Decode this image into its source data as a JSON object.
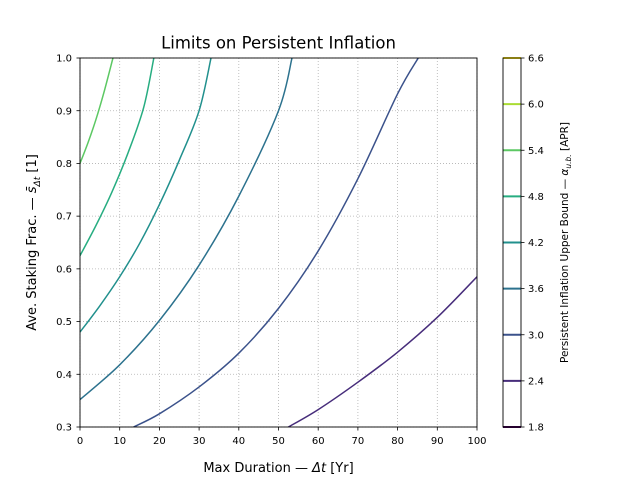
{
  "chart_data": {
    "type": "line",
    "title": "Limits on Persistent Inflation",
    "xlabel_text": "Max Duration — ",
    "xlabel_sym": "Δt",
    "xlabel_unit": " [Yr]",
    "ylabel_text": "Ave. Staking Frac. — ",
    "ylabel_sym": "s̄",
    "ylabel_sub": "Δt",
    "ylabel_unit": " [1]",
    "colorbar_label_text": "Persistent Inflation Upper Bound — ",
    "colorbar_label_sym": "α",
    "colorbar_label_sub": "u.b.",
    "colorbar_label_unit": "  [APR]",
    "xlim": [
      0,
      100
    ],
    "ylim": [
      0.3,
      1.0
    ],
    "x_ticks": [
      0,
      10,
      20,
      30,
      40,
      50,
      60,
      70,
      80,
      90,
      100
    ],
    "y_ticks": [
      0.3,
      0.4,
      0.5,
      0.6,
      0.7,
      0.8,
      0.9,
      1.0
    ],
    "y_tick_labels": [
      "0.3",
      "0.4",
      "0.5",
      "0.6",
      "0.7",
      "0.8",
      "0.9",
      "1.0"
    ],
    "grid": true,
    "colorbar": {
      "levels": [
        1.8,
        2.4,
        3.0,
        3.6,
        4.2,
        4.8,
        5.4,
        6.0,
        6.6
      ],
      "labels": [
        "1.8",
        "2.4",
        "3.0",
        "3.6",
        "4.2",
        "4.8",
        "5.4",
        "6.0",
        "6.6"
      ],
      "colors": [
        "#440154",
        "#472d7b",
        "#3b528b",
        "#2c728e",
        "#21908d",
        "#27ad81",
        "#5cc863",
        "#aadc32",
        "#fde725"
      ]
    },
    "series": [
      {
        "level": 2.4,
        "color": "#472d7b",
        "x": [
          52.5,
          60,
          70,
          80,
          90,
          100
        ],
        "y": [
          0.3,
          0.333,
          0.385,
          0.442,
          0.508,
          0.585
        ]
      },
      {
        "level": 3.0,
        "color": "#3b528b",
        "x": [
          13.5,
          20,
          30,
          40,
          50,
          60,
          70,
          80,
          85.2
        ],
        "y": [
          0.3,
          0.325,
          0.376,
          0.44,
          0.525,
          0.634,
          0.771,
          0.932,
          1.0
        ]
      },
      {
        "level": 3.6,
        "color": "#2c728e",
        "x": [
          0,
          10,
          20,
          30,
          40,
          50,
          53.4
        ],
        "y": [
          0.352,
          0.418,
          0.502,
          0.607,
          0.738,
          0.9,
          1.0
        ]
      },
      {
        "level": 4.2,
        "color": "#21908d",
        "x": [
          0,
          5,
          10,
          15,
          20,
          25,
          30,
          33.0
        ],
        "y": [
          0.48,
          0.53,
          0.585,
          0.648,
          0.722,
          0.806,
          0.9,
          1.0
        ]
      },
      {
        "level": 4.8,
        "color": "#27ad81",
        "x": [
          0,
          4,
          8,
          12,
          16,
          18.6
        ],
        "y": [
          0.625,
          0.682,
          0.745,
          0.818,
          0.905,
          1.0
        ]
      },
      {
        "level": 5.4,
        "color": "#5cc863",
        "x": [
          0,
          2,
          4,
          6,
          8.3
        ],
        "y": [
          0.8,
          0.839,
          0.883,
          0.934,
          1.0
        ]
      }
    ]
  }
}
